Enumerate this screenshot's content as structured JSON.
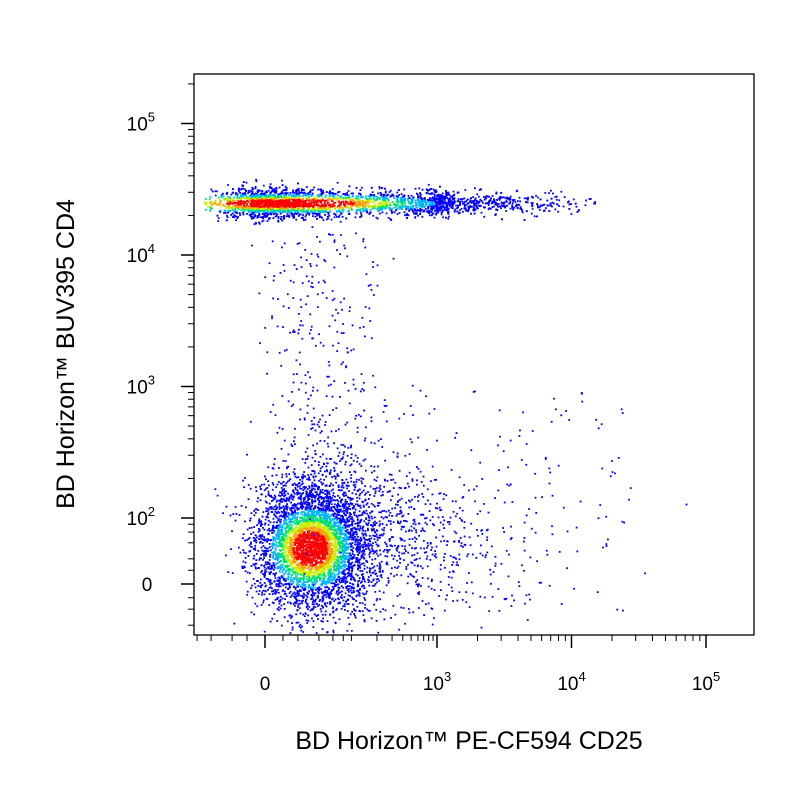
{
  "chart_data": {
    "type": "scatter",
    "style": "flow-cytometry-density-dot-plot",
    "title": "",
    "xlabel": "BD Horizon™ PE-CF594 CD25",
    "ylabel": "BD Horizon™ BUV395 CD4",
    "x_scale": "biexponential",
    "y_scale": "biexponential",
    "x_ticks": [
      {
        "value": 0,
        "base": "0",
        "exp": ""
      },
      {
        "value": 1000,
        "base": "10",
        "exp": "3"
      },
      {
        "value": 10000,
        "base": "10",
        "exp": "4"
      },
      {
        "value": 100000,
        "base": "10",
        "exp": "5"
      }
    ],
    "y_ticks": [
      {
        "value": 0,
        "base": "0",
        "exp": ""
      },
      {
        "value": 100,
        "base": "10",
        "exp": "2"
      },
      {
        "value": 1000,
        "base": "10",
        "exp": "3"
      },
      {
        "value": 10000,
        "base": "10",
        "exp": "4"
      },
      {
        "value": 100000,
        "base": "10",
        "exp": "5"
      }
    ],
    "grid": false,
    "legend": "none",
    "density_colors": [
      "#0000ff",
      "#00b4ff",
      "#00e070",
      "#c8f000",
      "#ff9a00",
      "#ff0000"
    ],
    "populations": [
      {
        "x_center": 180,
        "y_center": 25000,
        "x_range": [
          -120,
          18000
        ],
        "y_range": [
          13000,
          45000
        ],
        "relative_size": 0.36
      },
      {
        "x_center": 30,
        "y_center": 40,
        "x_range": [
          -120,
          3000
        ],
        "y_range": [
          -150,
          600
        ],
        "relative_size": 0.6
      },
      {
        "x_center": 40,
        "y_center": 3000,
        "x_range": [
          -100,
          300
        ],
        "y_range": [
          500,
          12000
        ],
        "relative_size": 0.04
      }
    ]
  }
}
